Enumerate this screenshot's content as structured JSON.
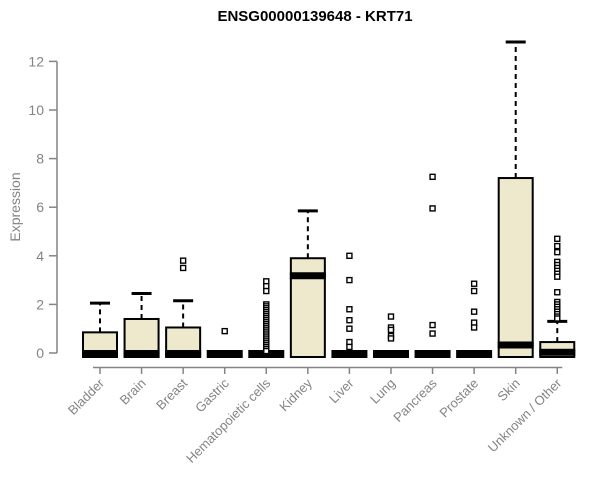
{
  "chart_data": {
    "type": "boxplot",
    "title": "ENSG00000139648 - KRT71",
    "xlabel": "",
    "ylabel": "Expression",
    "ylim": [
      0,
      12.9
    ],
    "yticks": [
      0,
      2,
      4,
      6,
      8,
      10,
      12
    ],
    "grid": false,
    "legend": false,
    "colors": {
      "box_fill": "#EEE8CD",
      "box_stroke": "#000000",
      "median": "#000000",
      "whisker": "#000000",
      "outlier_stroke": "#000000",
      "axis": "#848484",
      "title": "#000000",
      "background": "#FFFFFF"
    },
    "categories": [
      {
        "label": "Bladder",
        "q1": 0,
        "median": 0,
        "q3": 0.85,
        "whisker_low": 0,
        "whisker_high": 2.05,
        "outliers": []
      },
      {
        "label": "Brain",
        "q1": 0,
        "median": 0,
        "q3": 1.4,
        "whisker_low": 0,
        "whisker_high": 2.45,
        "outliers": []
      },
      {
        "label": "Breast",
        "q1": 0,
        "median": 0,
        "q3": 1.05,
        "whisker_low": 0,
        "whisker_high": 2.15,
        "outliers": [
          3.8,
          3.5
        ]
      },
      {
        "label": "Gastric",
        "q1": 0,
        "median": 0,
        "q3": 0,
        "whisker_low": 0,
        "whisker_high": 0,
        "outliers": [
          0.9
        ]
      },
      {
        "label": "Hematopoietic cells",
        "q1": 0,
        "median": 0,
        "q3": 0,
        "whisker_low": 0,
        "whisker_high": 0,
        "outliers": [
          2.95,
          2.75,
          2.55,
          2.0,
          1.92,
          1.84,
          1.76,
          1.68,
          1.6,
          1.52,
          1.44,
          1.36,
          1.28,
          1.2,
          1.12,
          1.04,
          0.96,
          0.88,
          0.8,
          0.72,
          0.64,
          0.56,
          0.48,
          0.4,
          0.32,
          0.24,
          0.16,
          0.08
        ]
      },
      {
        "label": "Kidney",
        "q1": 0,
        "median": 3.2,
        "q3": 3.9,
        "whisker_low": 0,
        "whisker_high": 5.85,
        "outliers": []
      },
      {
        "label": "Liver",
        "q1": 0,
        "median": 0,
        "q3": 0,
        "whisker_low": 0,
        "whisker_high": 0,
        "outliers": [
          4.0,
          3.0,
          1.8,
          1.35,
          1.0,
          0.45,
          0.25
        ]
      },
      {
        "label": "Lung",
        "q1": 0,
        "median": 0,
        "q3": 0,
        "whisker_low": 0,
        "whisker_high": 0,
        "outliers": [
          1.5,
          1.05,
          0.95,
          0.7,
          0.6
        ]
      },
      {
        "label": "Pancreas",
        "q1": 0,
        "median": 0,
        "q3": 0,
        "whisker_low": 0,
        "whisker_high": 0,
        "outliers": [
          7.25,
          5.95,
          1.15,
          0.8
        ]
      },
      {
        "label": "Prostate",
        "q1": 0,
        "median": 0,
        "q3": 0,
        "whisker_low": 0,
        "whisker_high": 0,
        "outliers": [
          2.85,
          2.55,
          1.7,
          1.25,
          1.05
        ]
      },
      {
        "label": "Skin",
        "q1": 0,
        "median": 0.35,
        "q3": 7.2,
        "whisker_low": 0,
        "whisker_high": 12.8,
        "outliers": []
      },
      {
        "label": "Unknown / Other",
        "q1": 0,
        "median": 0.05,
        "q3": 0.45,
        "whisker_low": 0,
        "whisker_high": 1.3,
        "outliers": [
          4.7,
          4.4,
          4.15,
          3.75,
          3.62,
          3.5,
          3.38,
          3.26,
          3.14,
          2.5,
          2.1,
          2.0,
          1.9,
          1.8,
          1.7,
          1.6,
          1.5,
          1.42
        ]
      }
    ]
  }
}
